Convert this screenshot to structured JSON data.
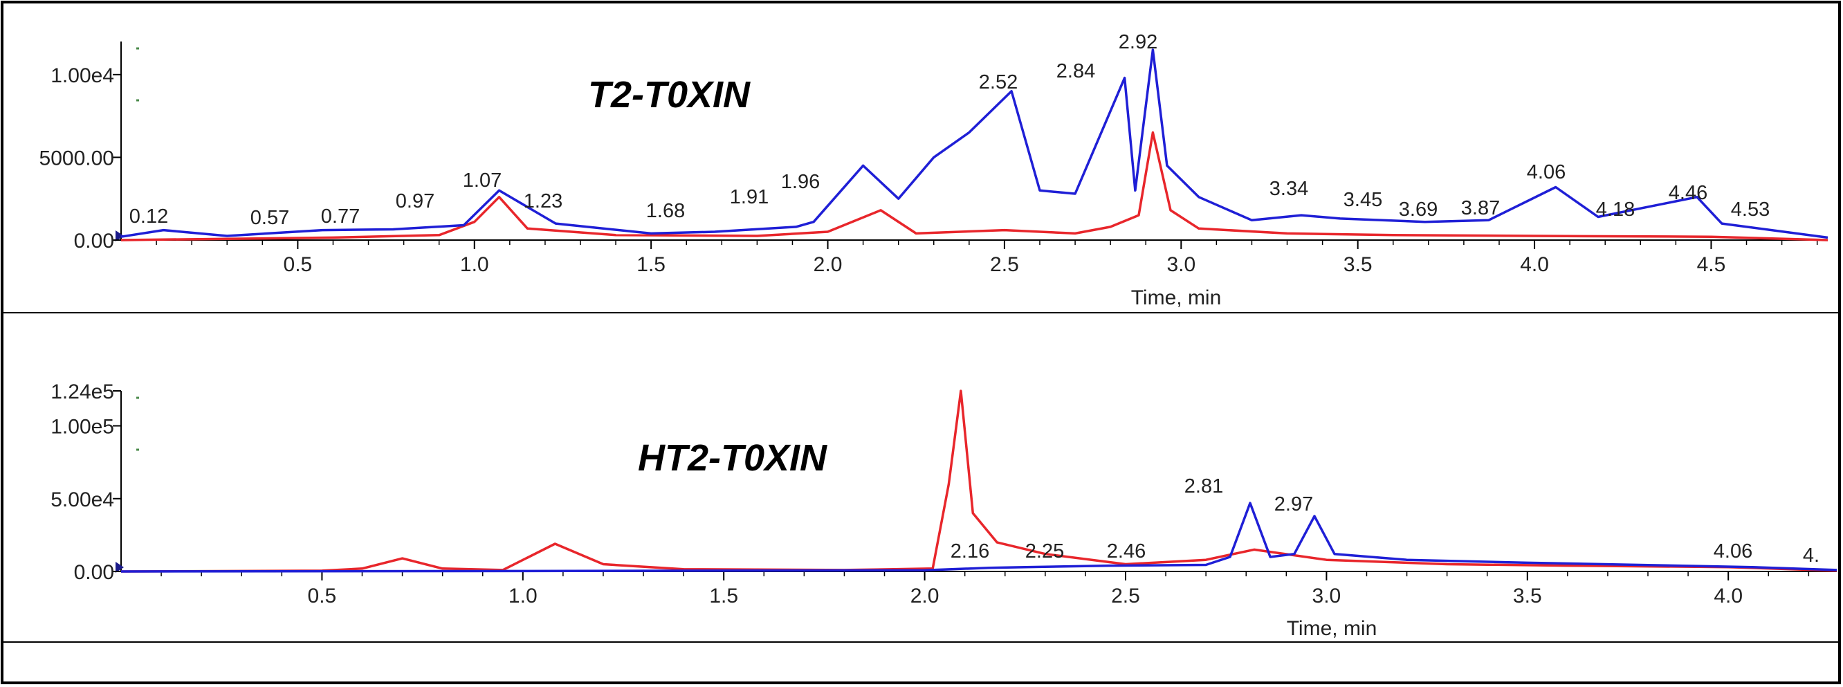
{
  "chart_data": [
    {
      "type": "line",
      "title": "T2-T0XIN",
      "xlabel": "Time, min",
      "ylabel": "",
      "xlim": [
        0.0,
        4.83
      ],
      "ylim": [
        0,
        12000
      ],
      "x_ticks": [
        "0.5",
        "1.0",
        "1.5",
        "2.0",
        "2.5",
        "3.0",
        "3.5",
        "4.0",
        "4.5"
      ],
      "y_ticks": [
        {
          "value": 0,
          "label": "0.00"
        },
        {
          "value": 5000,
          "label": "5000.00"
        },
        {
          "value": 10000,
          "label": "1.00e4"
        }
      ],
      "grid": false,
      "colors": {
        "blue": "#1f1fd6",
        "red": "#e8262b"
      },
      "series": [
        {
          "color": "#1f1fd6",
          "x": [
            0.0,
            0.12,
            0.3,
            0.57,
            0.77,
            0.97,
            1.07,
            1.23,
            1.5,
            1.68,
            1.91,
            1.96,
            2.1,
            2.2,
            2.3,
            2.4,
            2.52,
            2.6,
            2.7,
            2.84,
            2.87,
            2.92,
            2.96,
            3.05,
            3.2,
            3.34,
            3.45,
            3.69,
            3.87,
            4.06,
            4.18,
            4.46,
            4.53,
            4.83
          ],
          "y": [
            200,
            600,
            250,
            600,
            650,
            900,
            3000,
            1000,
            400,
            500,
            800,
            1100,
            4500,
            2500,
            5000,
            6500,
            9000,
            3000,
            2800,
            9800,
            3000,
            11500,
            4500,
            2600,
            1200,
            1500,
            1300,
            1100,
            1200,
            3200,
            1400,
            2600,
            1000,
            150
          ]
        },
        {
          "color": "#e8262b",
          "x": [
            0.0,
            0.6,
            0.9,
            1.0,
            1.07,
            1.15,
            1.4,
            1.8,
            2.0,
            2.15,
            2.25,
            2.5,
            2.7,
            2.8,
            2.88,
            2.92,
            2.97,
            3.05,
            3.3,
            3.6,
            4.0,
            4.5,
            4.83
          ],
          "y": [
            0,
            150,
            300,
            1100,
            2600,
            700,
            300,
            250,
            500,
            1800,
            400,
            600,
            400,
            800,
            1500,
            6500,
            1800,
            700,
            400,
            300,
            250,
            200,
            0
          ]
        }
      ],
      "annotations": [
        "0.12",
        "0.57",
        "0.77",
        "0.97",
        "1.07",
        "1.23",
        "1.68",
        "1.91",
        "1.96",
        "2.52",
        "2.84",
        "2.92",
        "3.34",
        "3.45",
        "3.69",
        "3.87",
        "4.06",
        "4.18",
        "4.46",
        "4.53"
      ]
    },
    {
      "type": "line",
      "title": "HT2-T0XIN",
      "xlabel": "Time, min",
      "ylabel": "",
      "xlim": [
        0.0,
        4.27
      ],
      "ylim": [
        0,
        124000
      ],
      "x_ticks": [
        "0.5",
        "1.0",
        "1.5",
        "2.0",
        "2.5",
        "3.0",
        "3.5",
        "4.0"
      ],
      "y_ticks": [
        {
          "value": 0,
          "label": "0.00"
        },
        {
          "value": 50000,
          "label": "5.00e4"
        },
        {
          "value": 100000,
          "label": "1.00e5"
        },
        {
          "value": 124000,
          "label": "1.24e5"
        }
      ],
      "grid": false,
      "colors": {
        "blue": "#1f1fd6",
        "red": "#e8262b"
      },
      "series": [
        {
          "color": "#1f1fd6",
          "x": [
            0.0,
            1.0,
            2.0,
            2.16,
            2.25,
            2.46,
            2.7,
            2.76,
            2.81,
            2.86,
            2.92,
            2.97,
            3.02,
            3.2,
            3.5,
            4.06,
            4.27
          ],
          "y": [
            0,
            300,
            800,
            2500,
            3000,
            4000,
            4500,
            10000,
            47000,
            10000,
            12000,
            38000,
            12000,
            8000,
            6000,
            3000,
            1000
          ]
        },
        {
          "color": "#e8262b",
          "x": [
            0.0,
            0.5,
            0.6,
            0.7,
            0.8,
            0.95,
            1.08,
            1.2,
            1.4,
            1.8,
            2.02,
            2.06,
            2.09,
            2.12,
            2.18,
            2.3,
            2.5,
            2.7,
            2.82,
            3.0,
            3.3,
            3.6,
            4.0,
            4.27
          ],
          "y": [
            0,
            500,
            2000,
            9000,
            2000,
            1000,
            19000,
            5000,
            1500,
            1000,
            2000,
            60000,
            124000,
            40000,
            20000,
            12000,
            5000,
            8000,
            15000,
            8000,
            5000,
            4000,
            3000,
            500
          ]
        }
      ],
      "annotations": [
        "2.16",
        "2.25",
        "2.46",
        "2.81",
        "2.97",
        "4.06",
        "4."
      ]
    }
  ]
}
